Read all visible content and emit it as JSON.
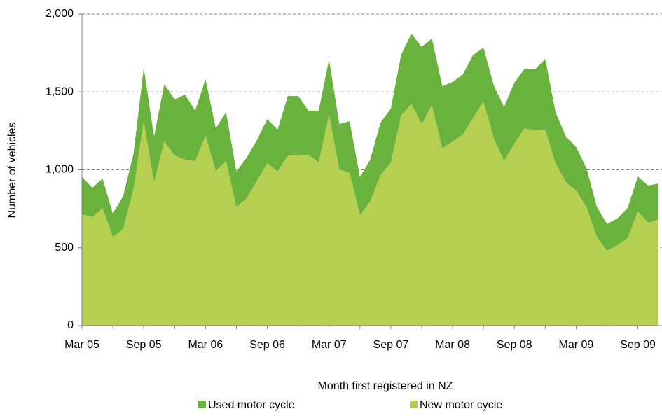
{
  "chart_data": {
    "type": "stacked-area",
    "x_label": "Month first registered in NZ",
    "y_label": "Number of vehicles",
    "categories": [
      "Mar 05",
      null,
      null,
      null,
      null,
      null,
      "Sep 05",
      null,
      null,
      null,
      null,
      null,
      "Mar 06",
      null,
      null,
      null,
      null,
      null,
      "Sep 06",
      null,
      null,
      null,
      null,
      null,
      "Mar 07",
      null,
      null,
      null,
      null,
      null,
      "Sep 07",
      null,
      null,
      null,
      null,
      null,
      "Mar 08",
      null,
      null,
      null,
      null,
      null,
      "Sep 08",
      null,
      null,
      null,
      null,
      null,
      "Mar 09",
      null,
      null,
      null,
      null,
      null,
      "Sep 09",
      null,
      null
    ],
    "series": [
      {
        "name": "Used motor cycle",
        "color": "#6ab23e",
        "values": [
          240,
          188,
          189,
          148,
          211,
          225,
          342,
          292,
          369,
          360,
          418,
          324,
          360,
          274,
          315,
          229,
          261,
          261,
          283,
          269,
          382,
          382,
          283,
          333,
          351,
          292,
          332,
          243,
          269,
          337,
          346,
          391,
          449,
          495,
          427,
          400,
          382,
          386,
          404,
          346,
          338,
          346,
          391,
          382,
          391,
          454,
          328,
          292,
          279,
          247,
          193,
          171,
          171,
          193,
          224,
          238,
          233
        ]
      },
      {
        "name": "New motor cycle",
        "color": "#b5d050",
        "values": [
          715,
          697,
          755,
          571,
          620,
          876,
          1312,
          921,
          1182,
          1092,
          1065,
          1056,
          1222,
          993,
          1056,
          760,
          818,
          930,
          1043,
          989,
          1092,
          1092,
          1097,
          1047,
          1357,
          1002,
          980,
          710,
          796,
          966,
          1047,
          1348,
          1425,
          1294,
          1416,
          1137,
          1182,
          1227,
          1335,
          1438,
          1204,
          1056,
          1169,
          1267,
          1254,
          1258,
          1043,
          921,
          867,
          764,
          571,
          481,
          517,
          562,
          733,
          661,
          679
        ]
      }
    ],
    "ylim": [
      0,
      2000
    ],
    "yticks": [
      0,
      500,
      {
        "value": 1000,
        "label": "1,000"
      },
      {
        "value": 1500,
        "label": "1,500"
      },
      {
        "value": 2000,
        "label": "2,000"
      }
    ],
    "grid": true,
    "legend": "bottom"
  }
}
